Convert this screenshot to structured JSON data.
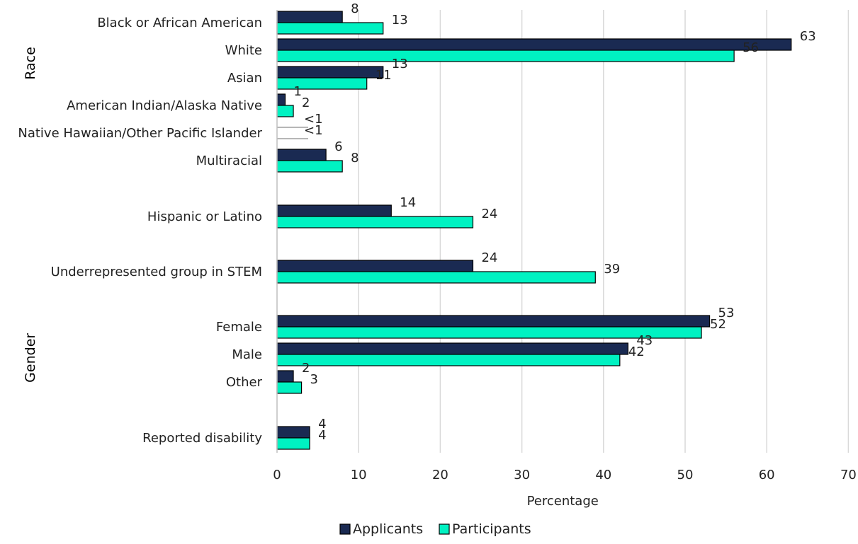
{
  "chart_data": {
    "type": "bar",
    "orientation": "horizontal",
    "xlabel": "Percentage",
    "xlim": [
      0,
      70
    ],
    "xticks": [
      0,
      10,
      20,
      30,
      40,
      50,
      60,
      70
    ],
    "grid": true,
    "legend_position": "bottom-center",
    "group_labels": [
      {
        "label": "Race"
      },
      {
        "label": "Gender"
      }
    ],
    "series": [
      {
        "name": "Applicants",
        "color": "#1a2a52"
      },
      {
        "name": "Participants",
        "color": "#00f2c2"
      }
    ],
    "categories": [
      {
        "label": "Black or African American",
        "values": [
          8,
          13
        ],
        "labels": [
          "8",
          "13"
        ]
      },
      {
        "label": "White",
        "values": [
          63,
          56
        ],
        "labels": [
          "63",
          "56"
        ]
      },
      {
        "label": "Asian",
        "values": [
          13,
          11
        ],
        "labels": [
          "13",
          "11"
        ]
      },
      {
        "label": "American Indian/Alaska Native",
        "values": [
          1,
          2
        ],
        "labels": [
          "1",
          "2"
        ]
      },
      {
        "label": "Native Hawaiian/Other Pacific Islander",
        "values": [
          0,
          0
        ],
        "labels": [
          "<1",
          "<1"
        ]
      },
      {
        "label": "Multiracial",
        "values": [
          6,
          8
        ],
        "labels": [
          "6",
          "8"
        ]
      },
      {
        "label": "Hispanic or Latino",
        "values": [
          14,
          24
        ],
        "labels": [
          "14",
          "24"
        ]
      },
      {
        "label": "Underrepresented group in STEM",
        "values": [
          24,
          39
        ],
        "labels": [
          "24",
          "39"
        ]
      },
      {
        "label": "Female",
        "values": [
          53,
          52
        ],
        "labels": [
          "53",
          "52"
        ]
      },
      {
        "label": "Male",
        "values": [
          43,
          42
        ],
        "labels": [
          "43",
          "42"
        ]
      },
      {
        "label": "Other",
        "values": [
          2,
          3
        ],
        "labels": [
          "2",
          "3"
        ]
      },
      {
        "label": "Reported disability",
        "values": [
          4,
          4
        ],
        "labels": [
          "4",
          "4"
        ]
      }
    ]
  }
}
